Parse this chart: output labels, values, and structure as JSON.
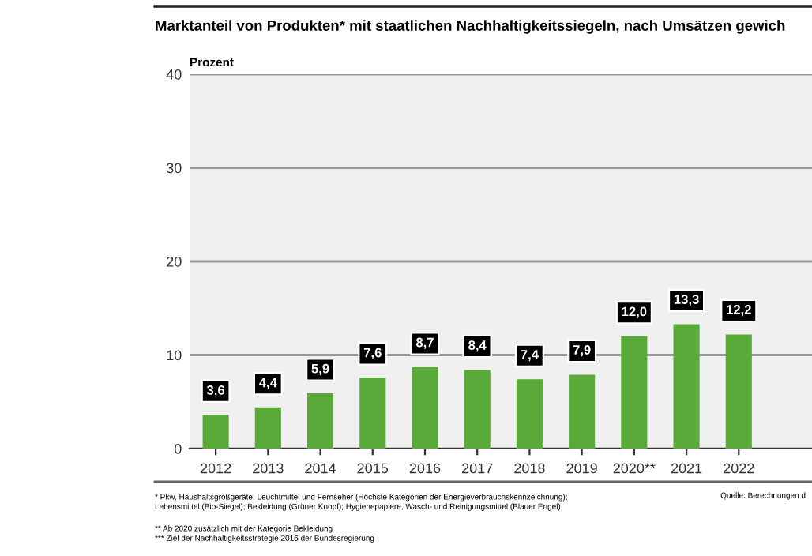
{
  "chart_data": {
    "type": "bar",
    "title": "Marktanteil von Produkten* mit staatlichen Nachhaltigkeitssiegeln, nach Umsätzen gewich",
    "ylabel": "Prozent",
    "categories": [
      "2012",
      "2013",
      "2014",
      "2015",
      "2016",
      "2017",
      "2018",
      "2019",
      "2020**",
      "2021",
      "2022"
    ],
    "values": [
      3.6,
      4.4,
      5.9,
      7.6,
      8.7,
      8.4,
      7.4,
      7.9,
      12.0,
      13.3,
      12.2
    ],
    "value_labels": [
      "3,6",
      "4,4",
      "5,9",
      "7,6",
      "8,7",
      "8,4",
      "7,4",
      "7,9",
      "12,0",
      "13,3",
      "12,2"
    ],
    "color": "#5aaa3a",
    "ylim": [
      0,
      40
    ],
    "yticks": [
      0,
      10,
      20,
      30,
      40
    ],
    "grid": "y",
    "annotations": [
      "* Pkw, Haushaltsgroßgeräte, Leuchtmittel und Fernseher (Höchste Kategorien der Energieverbrauchskennzeichnung);\nLebensmittel (Bio-Siegel); Bekleidung (Grüner Knopf); Hygienepapiere, Wasch- und Reinigungsmittel (Blauer Engel)",
      "** Ab 2020 zusätzlich mit der Kategorie Bekleidung\n*** Ziel der Nachhaltigkeitsstrategie 2016 der Bundesregierung",
      "Quelle: Berechnungen d"
    ]
  }
}
